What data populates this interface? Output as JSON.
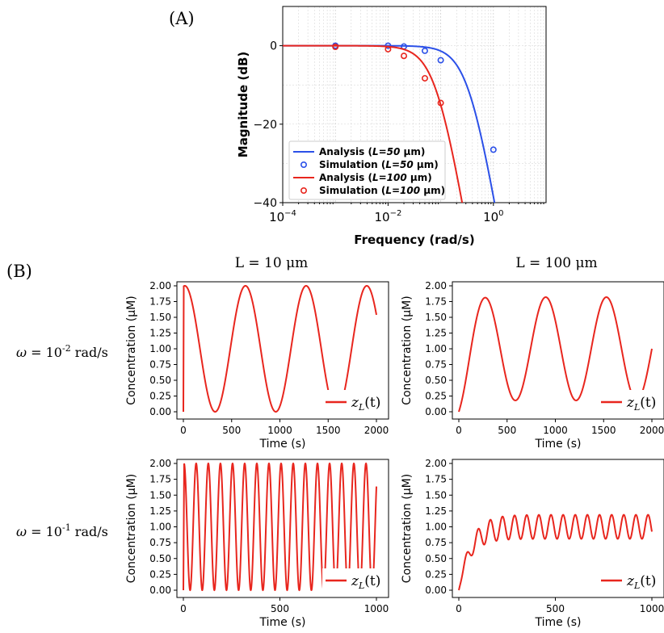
{
  "panel_a": {
    "label": "(A)",
    "chart": {
      "type": "line",
      "title": "",
      "xlabel": "Frequency (rad/s)",
      "ylabel": "Magnitude (dB)",
      "xscale": "log",
      "xlim": [
        0.0001,
        10
      ],
      "ylim": [
        -40,
        10
      ],
      "xticks": [
        {
          "value": 0.0001,
          "base": "10",
          "exp": "−4"
        },
        {
          "value": 0.01,
          "base": "10",
          "exp": "−2"
        },
        {
          "value": 1,
          "base": "10",
          "exp": "0"
        }
      ],
      "yticks": [
        {
          "value": 0,
          "label": "0"
        },
        {
          "value": -20,
          "label": "−20"
        },
        {
          "value": -40,
          "label": "−40"
        }
      ],
      "grid": true,
      "legend_position": "bottom-left",
      "series": [
        {
          "name": "Analysis (L=50 μm)",
          "legend_prefix": "Analysis (",
          "legend_italic": "L=50",
          "legend_suffix": " μm)",
          "kind": "line",
          "color": "#2b50e8",
          "cutoff": 0.35,
          "order": 4
        },
        {
          "name": "Simulation (L=50 μm)",
          "legend_prefix": "Simulation (",
          "legend_italic": "L=50",
          "legend_suffix": " μm)",
          "kind": "marker",
          "color": "#2b50e8",
          "x": [
            0.001,
            0.01,
            0.02,
            0.05,
            0.1,
            1.0
          ],
          "y": [
            0,
            0,
            -0.2,
            -1.3,
            -3.7,
            -26.5
          ]
        },
        {
          "name": "Analysis (L=100 μm)",
          "legend_prefix": "Analysis (",
          "legend_italic": "L=100",
          "legend_suffix": " μm)",
          "kind": "line",
          "color": "#e8261e",
          "cutoff": 0.085,
          "order": 4
        },
        {
          "name": "Simulation (L=100 μm)",
          "legend_prefix": "Simulation (",
          "legend_italic": "L=100",
          "legend_suffix": " μm)",
          "kind": "marker",
          "color": "#e8261e",
          "x": [
            0.001,
            0.01,
            0.02,
            0.05,
            0.1
          ],
          "y": [
            -0.3,
            -0.9,
            -2.6,
            -8.3,
            -14.6
          ]
        }
      ]
    }
  },
  "panel_b": {
    "label": "(B)",
    "col_titles": [
      "L = 10 μm",
      "L = 100 μm"
    ],
    "row_labels": [
      {
        "omega": "ω",
        "eq": " = 10",
        "exp": "-2",
        "unit": " rad/s"
      },
      {
        "omega": "ω",
        "eq": " = 10",
        "exp": "-1",
        "unit": " rad/s"
      }
    ],
    "legend": {
      "z": "z",
      "sub": "L",
      "arg": "(t)"
    },
    "chart_data": [
      {
        "type": "line",
        "name": "omega=1e-2, L=10um",
        "xlabel": "Time (s)",
        "ylabel": "Concentration (μM)",
        "xlim": [
          0,
          2000
        ],
        "ylim": [
          0,
          2
        ],
        "xticks": [
          0,
          500,
          1000,
          1500,
          2000
        ],
        "yticks": [
          "0.00",
          "0.25",
          "0.50",
          "0.75",
          "1.00",
          "1.25",
          "1.50",
          "1.75",
          "2.00"
        ],
        "omega": 0.01,
        "mean": 1.0,
        "amp": 1.0,
        "phase_lag_rad": 0.35,
        "rise_time_s": 2,
        "sample_dt": 2
      },
      {
        "type": "line",
        "name": "omega=1e-2, L=100um",
        "xlabel": "Time (s)",
        "ylabel": "Concentration (μM)",
        "xlim": [
          0,
          2000
        ],
        "ylim": [
          0,
          2
        ],
        "xticks": [
          0,
          500,
          1000,
          1500,
          2000
        ],
        "yticks": [
          "0.00",
          "0.25",
          "0.50",
          "0.75",
          "1.00",
          "1.25",
          "1.50",
          "1.75",
          "2.00"
        ],
        "omega": 0.01,
        "mean": 1.0,
        "amp": 0.82,
        "phase_lag_rad": 1.15,
        "rise_time_s": 50,
        "sample_dt": 2
      },
      {
        "type": "line",
        "name": "omega=1e-1, L=10um",
        "xlabel": "Time (s)",
        "ylabel": "Concentration (μM)",
        "xlim": [
          0,
          1000
        ],
        "ylim": [
          0,
          2
        ],
        "xticks": [
          0,
          500,
          1000
        ],
        "yticks": [
          "0.00",
          "0.25",
          "0.50",
          "0.75",
          "1.00",
          "1.25",
          "1.50",
          "1.75",
          "2.00"
        ],
        "omega": 0.1,
        "mean": 1.0,
        "amp": 1.0,
        "phase_lag_rad": 0.55,
        "rise_time_s": 1,
        "sample_dt": 0.5
      },
      {
        "type": "line",
        "name": "omega=1e-1, L=100um",
        "xlabel": "Time (s)",
        "ylabel": "Concentration (μM)",
        "xlim": [
          0,
          1000
        ],
        "ylim": [
          0,
          2
        ],
        "xticks": [
          0,
          500,
          1000
        ],
        "yticks": [
          "0.00",
          "0.25",
          "0.50",
          "0.75",
          "1.00",
          "1.25",
          "1.50",
          "1.75",
          "2.00"
        ],
        "omega": 0.1,
        "mean": 1.0,
        "amp": 0.19,
        "phase_lag_rad": 2.2,
        "rise_time_s": 60,
        "sample_dt": 0.5
      }
    ]
  },
  "colors": {
    "line": "#e8261e",
    "axis": "#000000",
    "grid": "#d0d0d0"
  }
}
